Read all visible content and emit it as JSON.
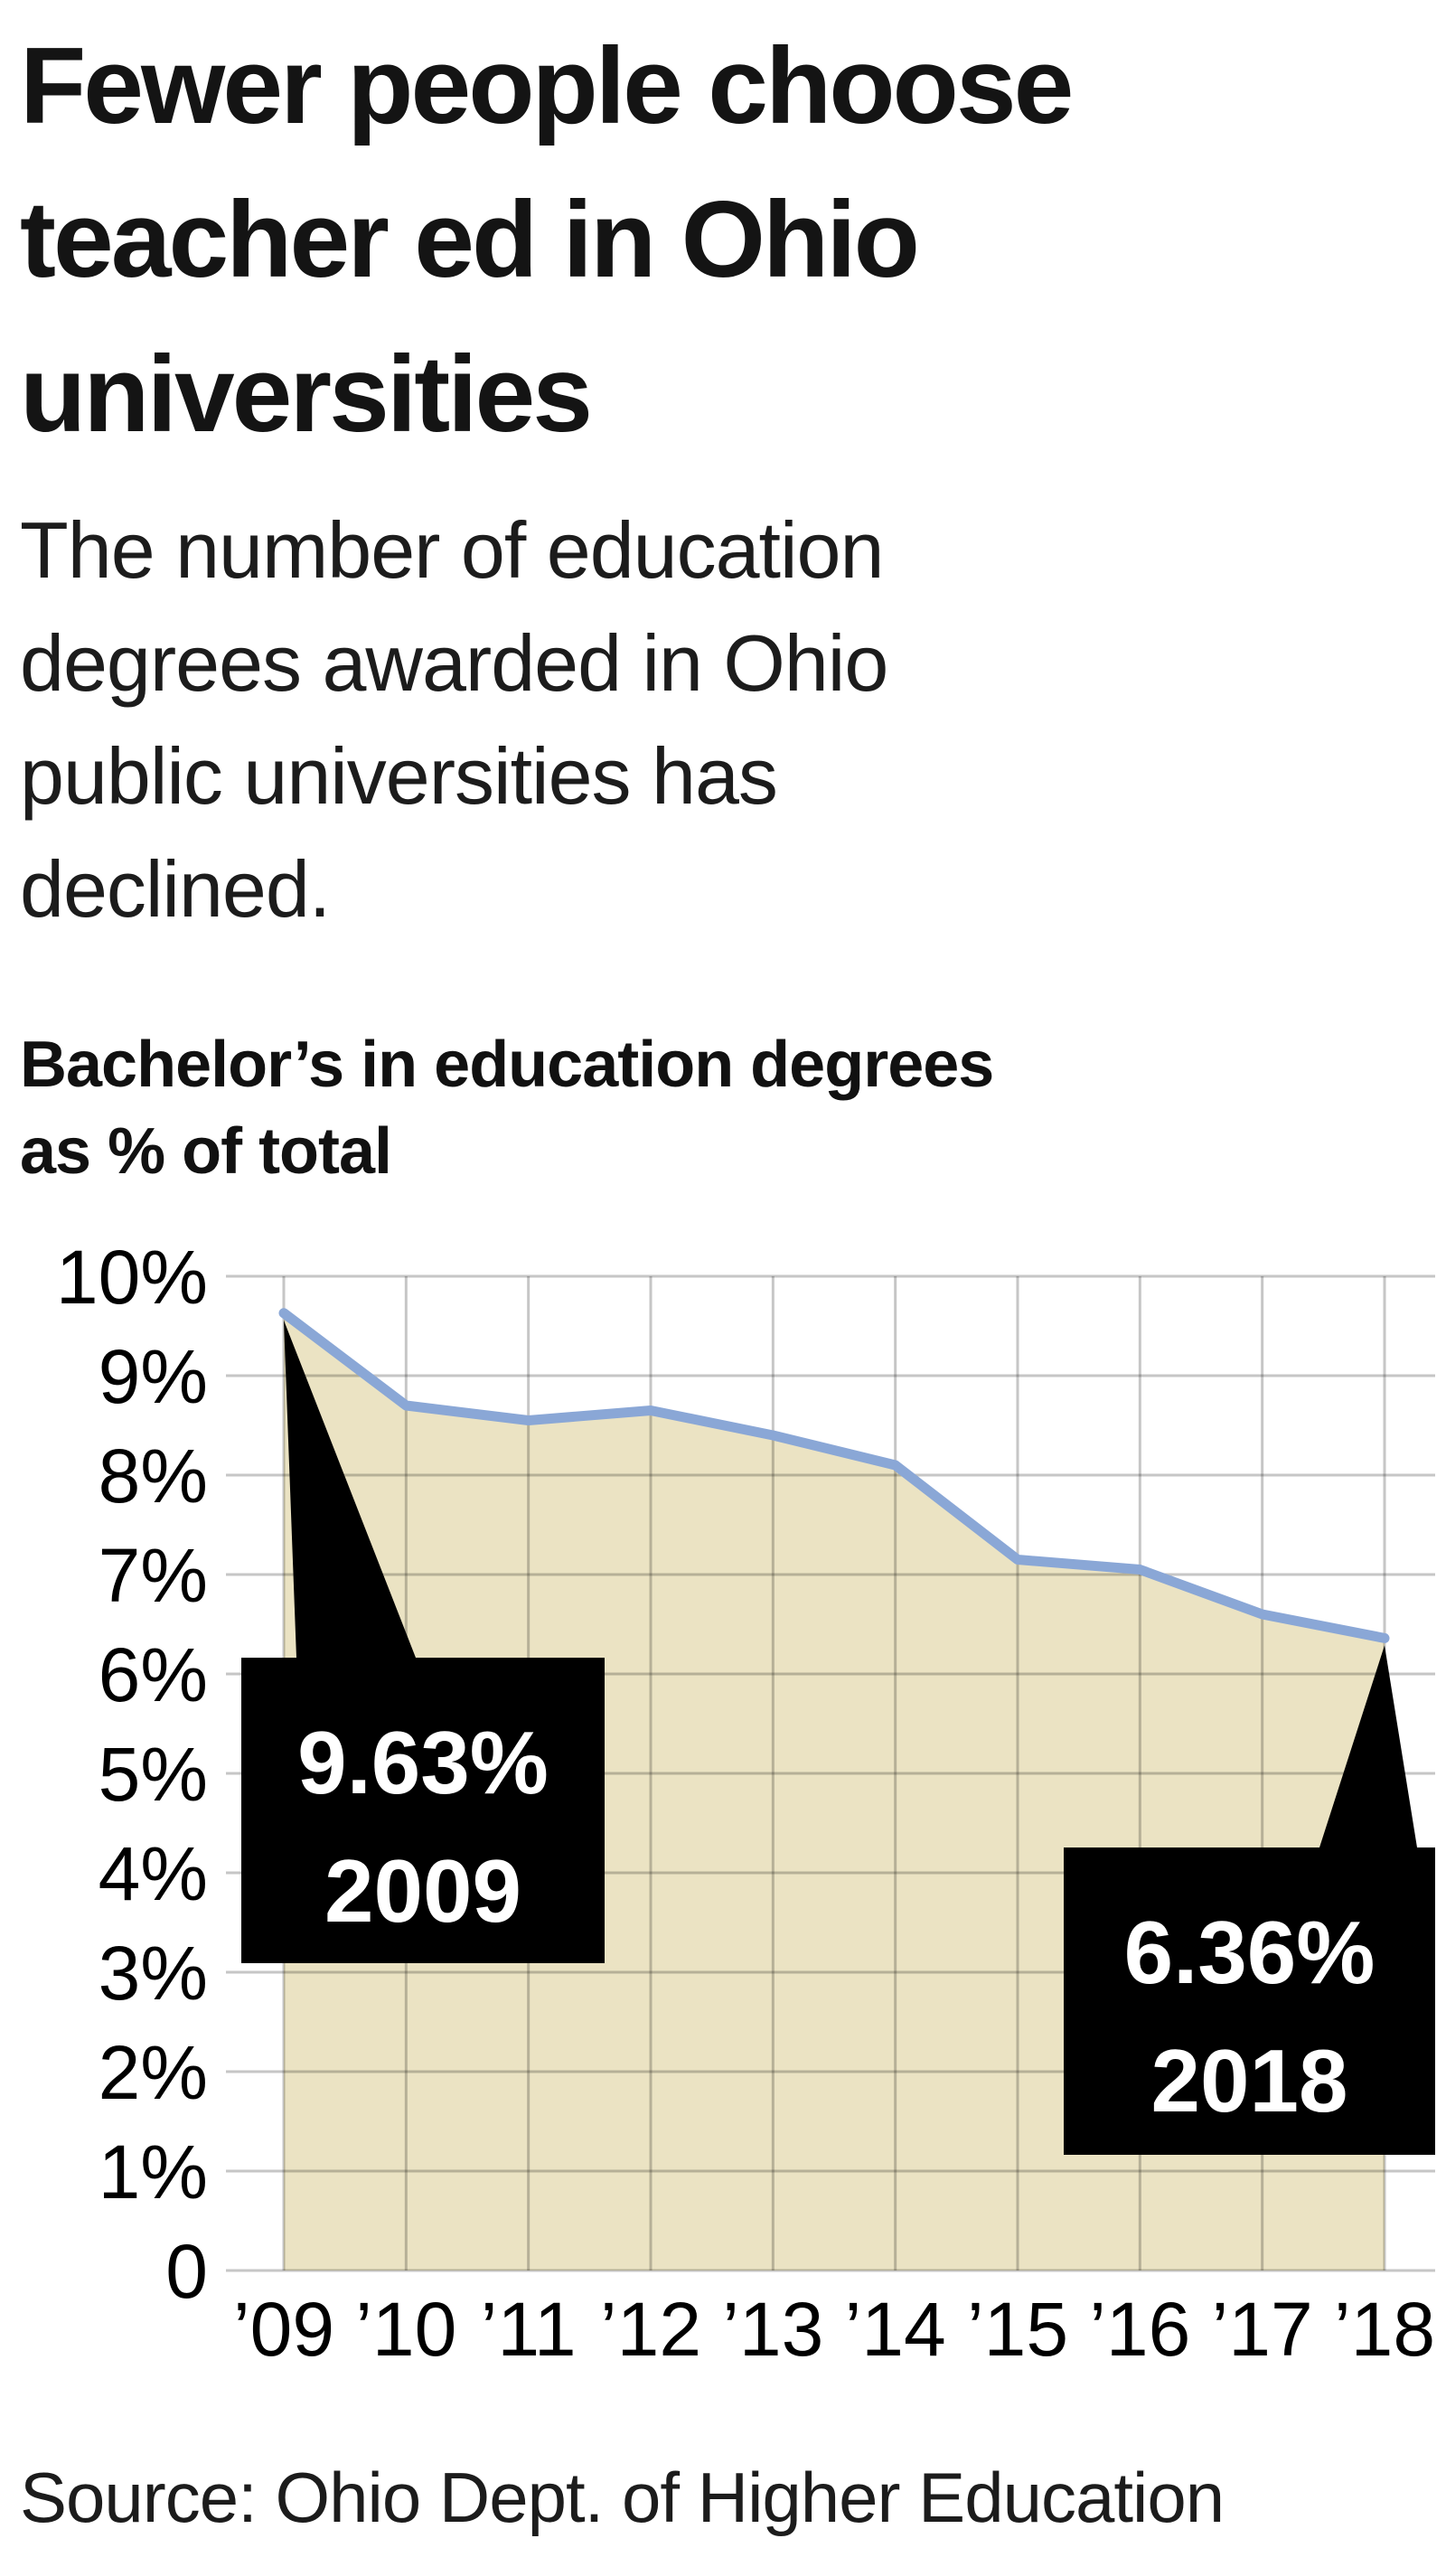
{
  "page": {
    "background": "#ffffff",
    "title_lines": [
      "Fewer people choose",
      "teacher ed in Ohio",
      "universities"
    ],
    "subtitle_lines": [
      "The number of education",
      "degrees awarded in Ohio",
      "public universities has",
      "declined."
    ],
    "source": "Source: Ohio Dept. of Higher Education"
  },
  "chart_data": {
    "type": "area",
    "title_lines": [
      "Bachelor’s in education degrees",
      "as % of total"
    ],
    "x_tick_labels": [
      "’09",
      "’10",
      "’11",
      "’12",
      "’13",
      "’14",
      "’15",
      "’16",
      "’17",
      "’18"
    ],
    "years": [
      2009,
      2010,
      2011,
      2012,
      2013,
      2014,
      2015,
      2016,
      2017,
      2018
    ],
    "values": [
      9.63,
      8.7,
      8.55,
      8.65,
      8.4,
      8.1,
      7.15,
      7.05,
      6.6,
      6.36
    ],
    "ylim": [
      0,
      10
    ],
    "y_tick_labels": [
      "10%",
      "9%",
      "8%",
      "7%",
      "6%",
      "5%",
      "4%",
      "3%",
      "2%",
      "1%",
      "0"
    ],
    "grid": true,
    "legend": "none",
    "annotations": [
      {
        "value_label": "9.63%",
        "year_label": "2009",
        "year": 2009,
        "value": 9.63
      },
      {
        "value_label": "6.36%",
        "year_label": "2018",
        "year": 2018,
        "value": 6.36
      }
    ],
    "colors": {
      "area_fill": "#ebe3c3",
      "line": "#8aa7d6",
      "grid": "#c6c6c6",
      "callout_bg": "#000000",
      "callout_text": "#ffffff",
      "axis_text": "#000000"
    }
  }
}
